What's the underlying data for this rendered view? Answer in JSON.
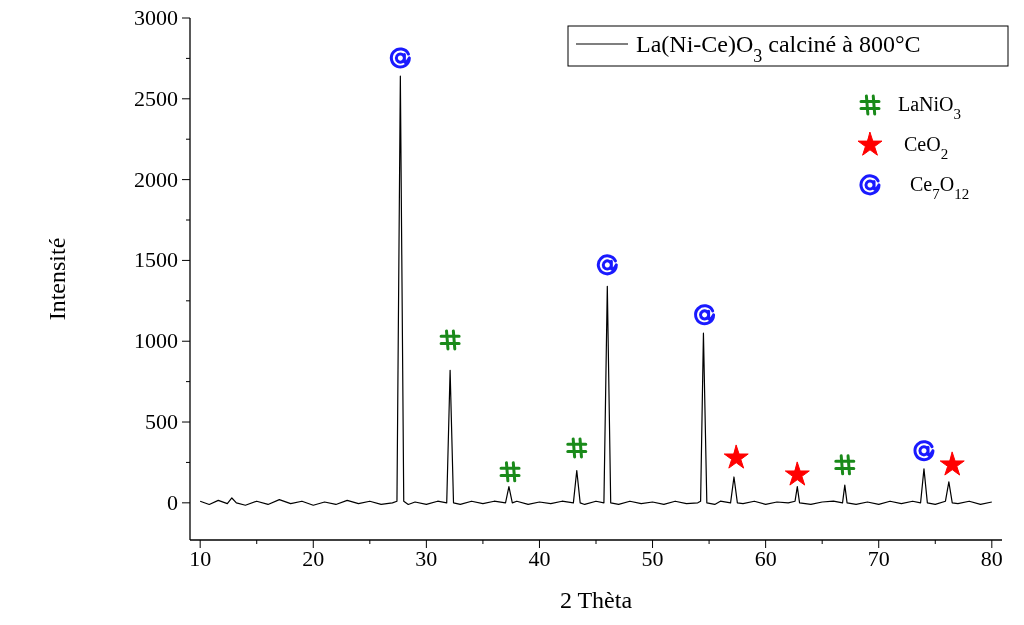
{
  "chart_data": {
    "type": "line",
    "xlabel": "2 Thèta",
    "ylabel": "Intensité",
    "xlim": [
      9.1,
      80.9
    ],
    "ylim": [
      -230,
      3000
    ],
    "xticks": [
      10,
      {
        "value": 15,
        "label": null
      },
      20,
      {
        "value": 25,
        "label": null
      },
      30,
      {
        "value": 35,
        "label": null
      },
      40,
      {
        "value": 45,
        "label": null
      },
      50,
      {
        "value": 55,
        "label": null
      },
      60,
      {
        "value": 65,
        "label": null
      },
      70,
      {
        "value": 75,
        "label": null
      },
      80
    ],
    "yticks": [
      0,
      {
        "value": 250,
        "label": null
      },
      500,
      {
        "value": 750,
        "label": null
      },
      1000,
      {
        "value": 1250,
        "label": null
      },
      1500,
      {
        "value": 1750,
        "label": null
      },
      2000,
      {
        "value": 2250,
        "label": null
      },
      2500,
      {
        "value": 2750,
        "label": null
      },
      3000
    ],
    "legend": "top right",
    "grid": false,
    "series": [
      {
        "name": "La(Ni-Ce)O$_{3}$ calciné à 800°C",
        "color": "#000000",
        "x": [
          10,
          10.8,
          11.6,
          12.4,
          12.8,
          13.2,
          14,
          15,
          16,
          17,
          18,
          19,
          20,
          21,
          22,
          23,
          24,
          25,
          26,
          27,
          27.4,
          27.7,
          28,
          28.4,
          29,
          30,
          31,
          31.8,
          32.1,
          32.4,
          33,
          34,
          35,
          36,
          37,
          37.3,
          37.6,
          38,
          39,
          40,
          41,
          42,
          43,
          43.3,
          43.6,
          44,
          45,
          45.7,
          46,
          46.3,
          47,
          48,
          49,
          50,
          51,
          52,
          53,
          54,
          54.25,
          54.5,
          54.8,
          55.5,
          56,
          56.9,
          57.2,
          57.5,
          58,
          59,
          60,
          61,
          62,
          62.6,
          62.8,
          63,
          64,
          65,
          66,
          66.8,
          67,
          67.2,
          68,
          69,
          70,
          71,
          72,
          73,
          73.7,
          74,
          74.3,
          75,
          75.9,
          76.2,
          76.5,
          77,
          78,
          79,
          80
        ],
        "values": [
          10,
          -10,
          15,
          -5,
          30,
          0,
          -15,
          10,
          -10,
          20,
          -5,
          10,
          -15,
          5,
          -10,
          15,
          -5,
          10,
          -10,
          0,
          10,
          2640,
          10,
          -10,
          5,
          -10,
          10,
          0,
          820,
          0,
          -10,
          10,
          -5,
          10,
          0,
          100,
          0,
          10,
          -10,
          5,
          -5,
          10,
          0,
          200,
          0,
          -10,
          10,
          0,
          1340,
          0,
          -10,
          10,
          -5,
          5,
          -10,
          10,
          -5,
          0,
          10,
          1050,
          0,
          -10,
          10,
          0,
          160,
          0,
          -5,
          10,
          -10,
          5,
          0,
          10,
          100,
          0,
          -10,
          5,
          10,
          0,
          110,
          0,
          -10,
          5,
          -10,
          10,
          -5,
          10,
          0,
          210,
          0,
          -10,
          10,
          130,
          0,
          -5,
          10,
          -10,
          5
        ]
      },
      {
        "name": "LaNiO$_{3}$",
        "color": "#1a8a1a",
        "type": "scatter",
        "marker": "cross",
        "x": [
          32.1,
          37.4,
          43.3,
          67.0
        ],
        "values": [
          1008,
          192,
          340,
          235
        ]
      },
      {
        "name": "CeO$_{2}$",
        "color": "#ff0000",
        "type": "scatter",
        "marker": "star",
        "x": [
          57.4,
          62.8,
          76.5
        ],
        "values": [
          278,
          173,
          235
        ]
      },
      {
        "name": "Ce$_{7}$O$_{12}$",
        "color": "#1a1aff",
        "type": "scatter",
        "marker": "circle",
        "x": [
          27.7,
          46.0,
          54.6,
          74.0
        ],
        "values": [
          2752,
          1472,
          1163,
          322
        ]
      }
    ]
  }
}
